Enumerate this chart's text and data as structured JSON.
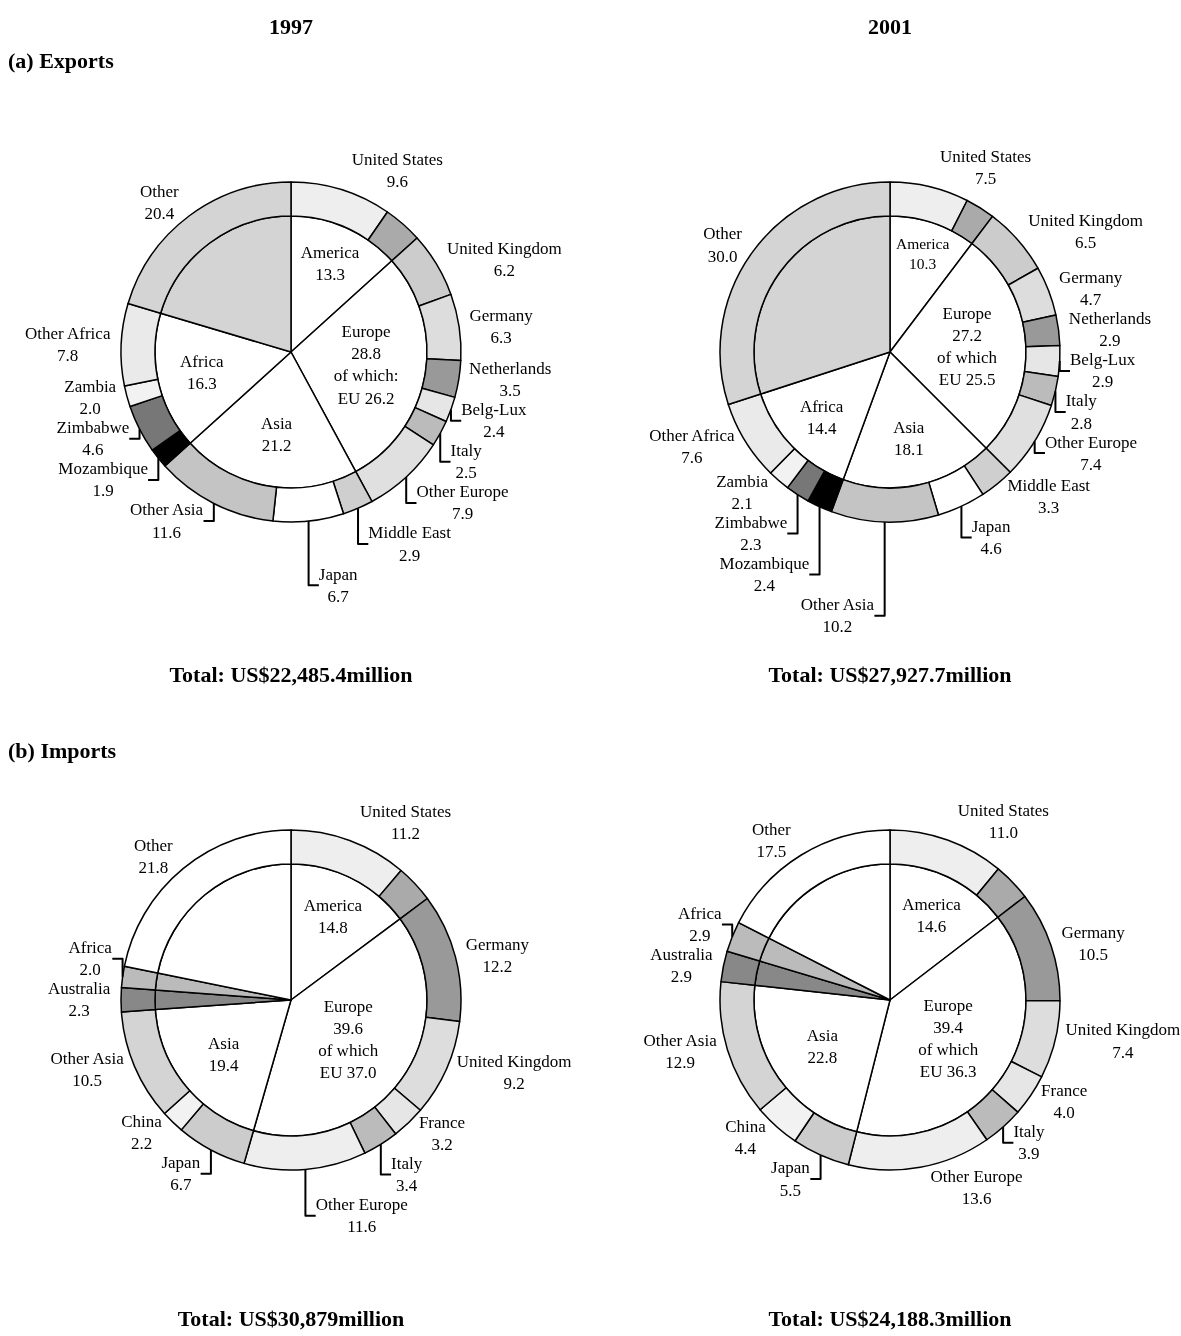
{
  "chart_data": [
    {
      "type": "pie",
      "categories": [
        "America",
        "Europe",
        "Asia",
        "Africa",
        null
      ],
      "values": [
        13.3,
        28.8,
        21.2,
        16.3,
        20.4
      ],
      "value_labels": [
        "13.3",
        "28.8\nof which:\nEU 26.2",
        "21.2",
        "16.3",
        null
      ],
      "colors": [
        "#ffffff",
        "#ffffff",
        "#ffffff",
        "#ffffff",
        "#d4d4d4"
      ]
    },
    {
      "type": "donut",
      "title": "(a) Exports",
      "subtitle": "1997",
      "annotations": [
        "Total: US$22,485.4million"
      ],
      "categories": [
        "United States",
        null,
        "United Kingdom",
        "Germany",
        "Netherlands",
        "Belg-Lux",
        "Italy",
        "Other Europe",
        "Middle East",
        "Japan",
        "Other Asia",
        "Mozambique",
        "Zimbabwe",
        "Zambia",
        "Other Africa",
        "Other"
      ],
      "values": [
        9.6,
        3.7,
        6.2,
        6.3,
        3.5,
        2.4,
        2.5,
        7.9,
        2.9,
        6.7,
        11.6,
        1.9,
        4.6,
        2.0,
        7.8,
        20.4
      ],
      "value_labels": [
        "9.6",
        null,
        "6.2",
        "6.3",
        "3.5",
        "2.4",
        "2.5",
        "7.9",
        "2.9",
        "6.7",
        "11.6",
        "1.9",
        "4.6",
        "2.0",
        "7.8",
        "20.4"
      ],
      "colors": [
        "#eeeeee",
        "#aaaaaa",
        "#cccccc",
        "#dddddd",
        "#999999",
        "#e6e6e6",
        "#bbbbbb",
        "#e0e0e0",
        "#cfcfcf",
        "#ffffff",
        "#c4c4c4",
        "#000000",
        "#777777",
        "#f2f2f2",
        "#eaeaea",
        "#d4d4d4"
      ]
    },
    {
      "type": "pie",
      "categories": [
        "America",
        "Europe",
        "Asia",
        "Africa",
        null
      ],
      "values": [
        10.3,
        27.2,
        18.1,
        14.4,
        30.0
      ],
      "value_labels": [
        "10.3",
        "27.2\nof which\nEU 25.5",
        "18.1",
        "14.4",
        null
      ],
      "colors": [
        "#ffffff",
        "#ffffff",
        "#ffffff",
        "#ffffff",
        "#d4d4d4"
      ]
    },
    {
      "type": "donut",
      "subtitle": "2001",
      "annotations": [
        "Total: US$27,927.7million"
      ],
      "categories": [
        "United States",
        null,
        "United Kingdom",
        "Germany",
        "Netherlands",
        "Belg-Lux",
        "Italy",
        "Other Europe",
        "Middle East",
        "Japan",
        "Other Asia",
        "Mozambique",
        "Zimbabwe",
        "Zambia",
        "Other Africa",
        "Other"
      ],
      "values": [
        7.5,
        2.8,
        6.5,
        4.7,
        2.9,
        2.9,
        2.8,
        7.4,
        3.3,
        4.6,
        10.2,
        2.4,
        2.3,
        2.1,
        7.6,
        30.0
      ],
      "value_labels": [
        "7.5",
        null,
        "6.5",
        "4.7",
        "2.9",
        "2.9",
        "2.8",
        "7.4",
        "3.3",
        "4.6",
        "10.2",
        "2.4",
        "2.3",
        "2.1",
        "7.6",
        "30.0"
      ],
      "colors": [
        "#eeeeee",
        "#aaaaaa",
        "#cccccc",
        "#dddddd",
        "#999999",
        "#e6e6e6",
        "#bbbbbb",
        "#e0e0e0",
        "#cfcfcf",
        "#ffffff",
        "#c4c4c4",
        "#000000",
        "#777777",
        "#f2f2f2",
        "#eaeaea",
        "#d4d4d4"
      ]
    },
    {
      "type": "pie",
      "categories": [
        "America",
        "Europe",
        "Asia",
        null,
        null,
        null
      ],
      "values": [
        14.8,
        39.6,
        19.4,
        2.3,
        2.0,
        21.8
      ],
      "value_labels": [
        "14.8",
        "39.6\nof which\nEU 37.0",
        "19.4",
        null,
        null,
        null
      ],
      "colors": [
        "#ffffff",
        "#ffffff",
        "#ffffff",
        "#888888",
        "#bbbbbb",
        "#ffffff"
      ]
    },
    {
      "type": "donut",
      "title": "(b) Imports",
      "annotations": [
        "Total: US$30,879million"
      ],
      "categories": [
        "United States",
        null,
        "Germany",
        "United Kingdom",
        "France",
        "Italy",
        "Other Europe",
        "Japan",
        "China",
        "Other Asia",
        "Australia",
        "Africa",
        "Other"
      ],
      "values": [
        11.2,
        3.6,
        12.2,
        9.2,
        3.2,
        3.4,
        11.6,
        6.7,
        2.2,
        10.5,
        2.3,
        2.0,
        21.8
      ],
      "value_labels": [
        "11.2",
        null,
        "12.2",
        "9.2",
        "3.2",
        "3.4",
        "11.6",
        "6.7",
        "2.2",
        "10.5",
        "2.3",
        "2.0",
        "21.8"
      ],
      "colors": [
        "#eeeeee",
        "#aaaaaa",
        "#999999",
        "#dddddd",
        "#e6e6e6",
        "#bbbbbb",
        "#eeeeee",
        "#cccccc",
        "#f2f2f2",
        "#d4d4d4",
        "#888888",
        "#bbbbbb",
        "#ffffff"
      ]
    },
    {
      "type": "pie",
      "categories": [
        "America",
        "Europe",
        "Asia",
        null,
        null,
        null
      ],
      "values": [
        14.6,
        39.4,
        22.8,
        2.9,
        2.9,
        17.5
      ],
      "value_labels": [
        "14.6",
        "39.4\nof which\nEU 36.3",
        "22.8",
        null,
        null,
        null
      ],
      "colors": [
        "#ffffff",
        "#ffffff",
        "#ffffff",
        "#888888",
        "#bbbbbb",
        "#ffffff"
      ]
    },
    {
      "type": "donut",
      "annotations": [
        "Total: US$24,188.3million"
      ],
      "categories": [
        "United States",
        null,
        "Germany",
        "United Kingdom",
        "France",
        "Italy",
        "Other Europe",
        "Japan",
        "China",
        "Other Asia",
        "Australia",
        "Africa",
        "Other"
      ],
      "values": [
        11.0,
        3.6,
        10.5,
        7.4,
        4.0,
        3.9,
        13.6,
        5.5,
        4.4,
        12.9,
        2.9,
        2.9,
        17.5
      ],
      "value_labels": [
        "11.0",
        null,
        "10.5",
        "7.4",
        "4.0",
        "3.9",
        "13.6",
        "5.5",
        "4.4",
        "12.9",
        "2.9",
        "2.9",
        "17.5"
      ],
      "colors": [
        "#eeeeee",
        "#aaaaaa",
        "#999999",
        "#dddddd",
        "#e6e6e6",
        "#bbbbbb",
        "#eeeeee",
        "#cccccc",
        "#f2f2f2",
        "#d4d4d4",
        "#888888",
        "#bbbbbb",
        "#ffffff"
      ]
    }
  ]
}
